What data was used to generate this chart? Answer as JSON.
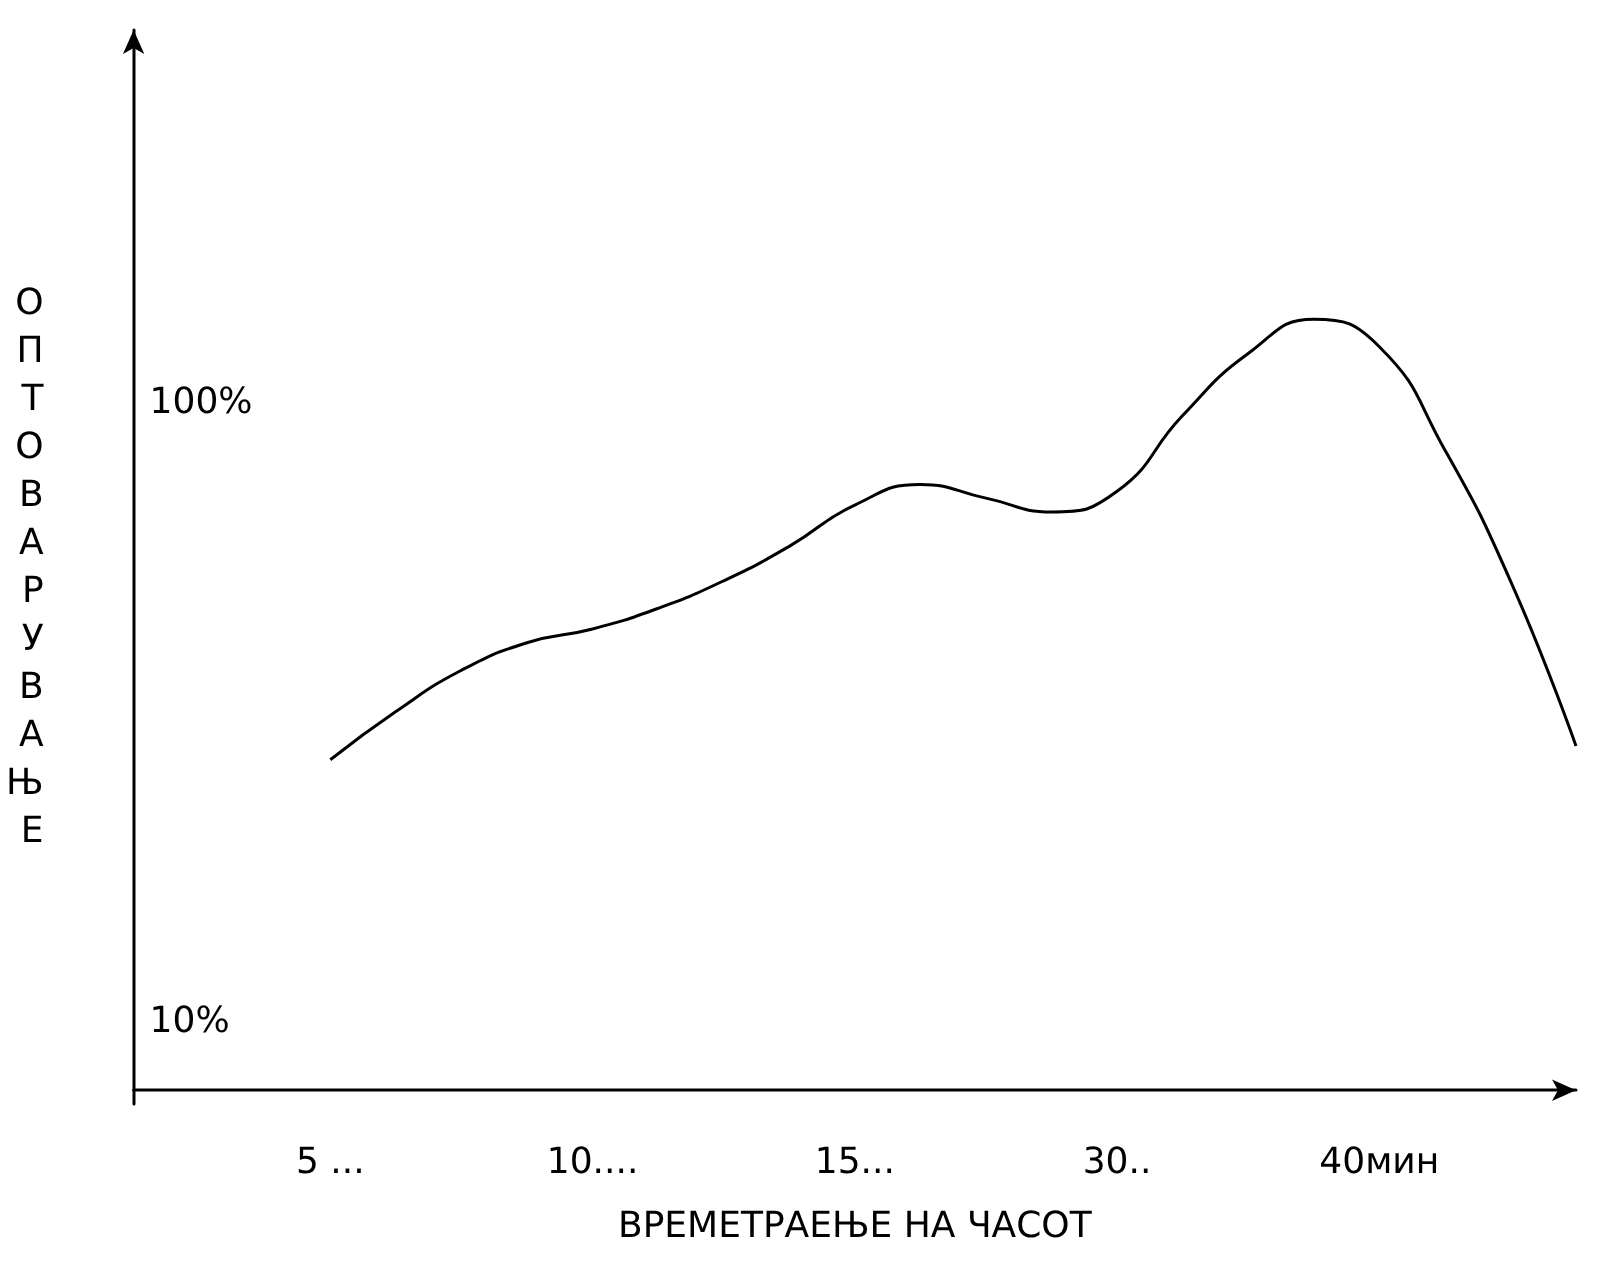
{
  "chart_data": {
    "type": "line",
    "xlabel": "ВРЕМЕТРАЕЊЕ НА ЧАСОТ",
    "ylabel": "ОПТОВАРУВАЊЕ",
    "categories": [
      null,
      null,
      null,
      "5 ...",
      null,
      null,
      null,
      "10....",
      null,
      null,
      null,
      "15...",
      null,
      null,
      null,
      "30..",
      null,
      null,
      null,
      "40мин",
      null,
      null,
      null
    ],
    "series": [
      {
        "color": "#000000",
        "values": [
          null,
          null,
          null,
          48,
          55,
          61,
          65,
          67,
          70,
          74,
          79,
          85,
          88,
          86,
          84,
          87,
          98,
          107,
          112,
          108,
          93,
          74,
          50
        ]
      }
    ],
    "ylim": [
      -2,
      154
    ],
    "yticks": [
      {
        "value": 10,
        "label": "10%"
      },
      {
        "value": 100,
        "label": "100%"
      }
    ],
    "grid": false,
    "marker": "none",
    "line_style": "solid"
  }
}
